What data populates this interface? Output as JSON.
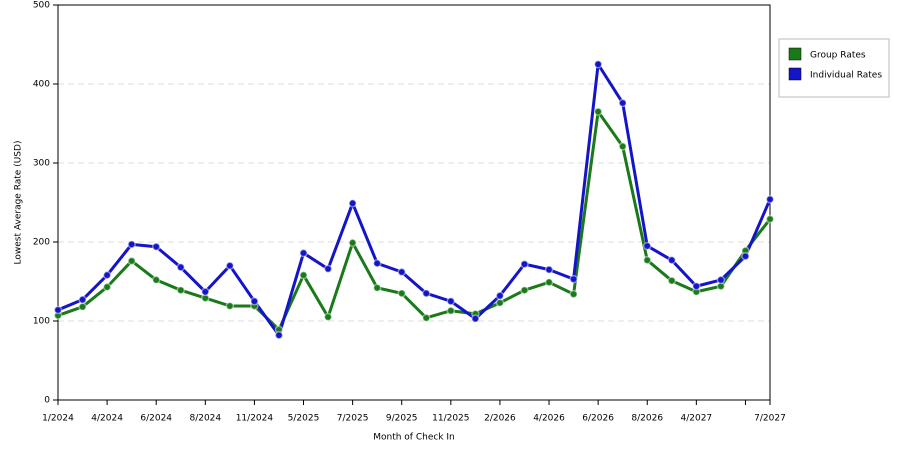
{
  "chart_data": {
    "type": "line",
    "x_label": "Month of Check In",
    "y_label": "Lowest Average Rate (USD)",
    "categories": [
      "1/2024",
      null,
      "4/2024",
      null,
      "6/2024",
      null,
      "8/2024",
      null,
      "11/2024",
      null,
      "5/2025",
      null,
      "7/2025",
      null,
      "9/2025",
      null,
      "11/2025",
      null,
      "2/2026",
      null,
      "4/2026",
      null,
      "6/2026",
      null,
      "8/2026",
      null,
      "4/2027",
      null,
      null,
      "7/2027"
    ],
    "series": [
      {
        "name": "Group Rates",
        "color": "#1a7a1a",
        "values": [
          107,
          118,
          143,
          176,
          152,
          139,
          129,
          119,
          119,
          89,
          158,
          105,
          199,
          142,
          135,
          104,
          113,
          109,
          123,
          139,
          149,
          134,
          365,
          321,
          177,
          151,
          137,
          144,
          189,
          229
        ]
      },
      {
        "name": "Individual Rates",
        "color": "#1414c8",
        "values": [
          114,
          127,
          158,
          197,
          194,
          168,
          137,
          170,
          125,
          82,
          186,
          166,
          249,
          173,
          162,
          135,
          125,
          103,
          132,
          172,
          165,
          153,
          425,
          376,
          195,
          177,
          144,
          152,
          182,
          254
        ]
      }
    ],
    "ylim": [
      0,
      500
    ],
    "yticks": [
      0,
      100,
      200,
      300,
      400,
      500
    ],
    "grid": true,
    "legend": "right"
  }
}
